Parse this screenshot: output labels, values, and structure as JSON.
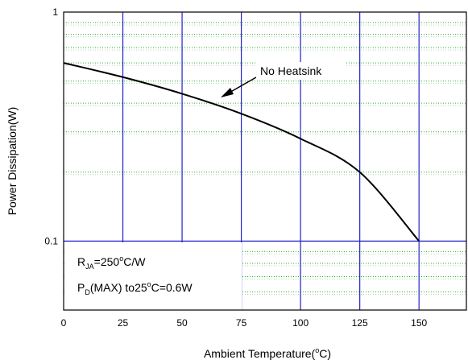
{
  "chart_data": {
    "type": "line",
    "title": "",
    "xlabel": "Ambient Temperature(",
    "xlabel_sup": "o",
    "xlabel_tail": "C)",
    "ylabel": "Power Dissipation(W)",
    "xlim": [
      0,
      170
    ],
    "ylim": [
      0.05,
      1
    ],
    "yscale": "log",
    "x_ticks": [
      0,
      25,
      50,
      75,
      100,
      125,
      150
    ],
    "x_tick_labels": [
      "0",
      "25",
      "50",
      "75",
      "100",
      "125",
      "150"
    ],
    "y_tick_labels": [
      {
        "value": 1,
        "label": "1"
      },
      {
        "value": 0.1,
        "label": "0.1"
      }
    ],
    "grid": {
      "major": true,
      "minor_y": true,
      "major_color": "#2222cc",
      "minor_color": "#33aa33"
    },
    "series": [
      {
        "color": "#000000",
        "x": [
          0,
          25,
          50,
          75,
          100,
          125,
          150
        ],
        "y": [
          0.6,
          0.52,
          0.44,
          0.36,
          0.28,
          0.2,
          0.1
        ]
      }
    ],
    "annotations": {
      "curve_label": "No Heatsink",
      "rja_main": "R",
      "rja_sub": "JA",
      "rja_value": "=250",
      "rja_sup": "o",
      "rja_tail": "C/W",
      "pd_main": "P",
      "pd_sub": "D",
      "pd_value": "(MAX) to25",
      "pd_sup": "o",
      "pd_tail": "C=0.6W"
    }
  }
}
